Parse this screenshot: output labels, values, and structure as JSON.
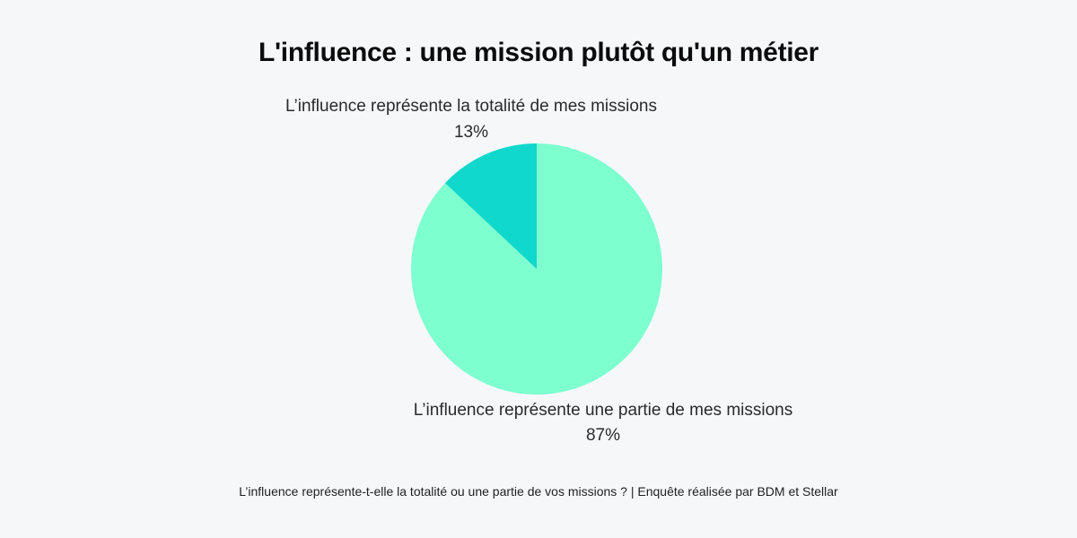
{
  "title": "L'influence : une mission plutôt qu'un métier",
  "caption": "L’influence représente-t-elle la totalité ou une partie de vos missions ? | Enquête réalisée par BDM et Stellar",
  "chart_data": {
    "type": "pie",
    "slices": [
      {
        "label": "L’influence représente une partie de mes missions",
        "value": 87,
        "value_label": "87%",
        "color": "#7dffcf"
      },
      {
        "label": "L’influence représente la totalité de mes missions",
        "value": 13,
        "value_label": "13%",
        "color": "#10d8cc"
      }
    ]
  }
}
